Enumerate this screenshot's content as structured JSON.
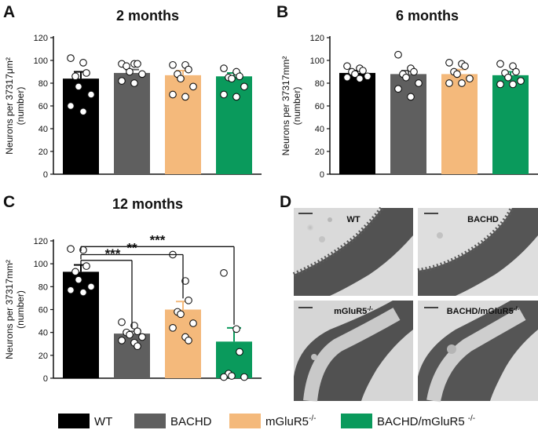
{
  "panels": {
    "A": "A",
    "B": "B",
    "C": "C",
    "D": "D"
  },
  "colors": {
    "WT": "#000000",
    "BACHD": "#5f5f5f",
    "mGluR5": "#f4b97b",
    "BACHD_mGluR5": "#0a9a5c"
  },
  "chart_data": [
    {
      "panel": "A",
      "type": "bar",
      "title": "2 months",
      "ylabel_line1": "Neurons per 37317μm²",
      "ylabel_line2": "(number)",
      "ylim": [
        0,
        120
      ],
      "yticks": [
        0,
        20,
        40,
        60,
        80,
        100,
        120
      ],
      "categories": [
        "WT",
        "BACHD",
        "mGluR5-/-",
        "BACHD/mGluR5-/-"
      ],
      "values": [
        84,
        89,
        87,
        86
      ],
      "sem": [
        6,
        3,
        4,
        3
      ],
      "points": [
        [
          102,
          98,
          89,
          86,
          77,
          70,
          60,
          55
        ],
        [
          97,
          97,
          97,
          95,
          90,
          88,
          82,
          80
        ],
        [
          96,
          96,
          92,
          88,
          84,
          77,
          70,
          68
        ],
        [
          93,
          90,
          86,
          85,
          84,
          77,
          70,
          68
        ]
      ],
      "significance": []
    },
    {
      "panel": "B",
      "type": "bar",
      "title": "6 months",
      "ylabel_line1": "Neurons per 37317mm²",
      "ylabel_line2": "(number)",
      "ylim": [
        0,
        120
      ],
      "yticks": [
        0,
        20,
        40,
        60,
        80,
        100,
        120
      ],
      "categories": [
        "WT",
        "BACHD",
        "mGluR5-/-",
        "BACHD/mGluR5-/-"
      ],
      "values": [
        89,
        88,
        88,
        87
      ],
      "sem": [
        2,
        3,
        4,
        3
      ],
      "points": [
        [
          95,
          93,
          91,
          90,
          88,
          86,
          85,
          84
        ],
        [
          105,
          93,
          90,
          88,
          85,
          80,
          75,
          68
        ],
        [
          98,
          97,
          95,
          90,
          88,
          84,
          80,
          80
        ],
        [
          97,
          95,
          90,
          89,
          85,
          82,
          79,
          79
        ]
      ],
      "significance": []
    },
    {
      "panel": "C",
      "type": "bar",
      "title": "12 months",
      "ylabel_line1": "Neurons per 37317mm²",
      "ylabel_line2": "(number)",
      "ylim": [
        0,
        120
      ],
      "yticks": [
        0,
        20,
        40,
        60,
        80,
        100,
        120
      ],
      "categories": [
        "WT",
        "BACHD",
        "mGluR5-/-",
        "BACHD/mGluR5-/-"
      ],
      "values": [
        93,
        39,
        60,
        32
      ],
      "sem": [
        6,
        2,
        7,
        12
      ],
      "points": [
        [
          113,
          112,
          98,
          93,
          86,
          80,
          77,
          75
        ],
        [
          49,
          46,
          41,
          40,
          38,
          36,
          33,
          31,
          28
        ],
        [
          108,
          85,
          68,
          58,
          56,
          48,
          44,
          36,
          33
        ],
        [
          92,
          43,
          23,
          4,
          2,
          1,
          1
        ]
      ],
      "significance": [
        {
          "from": 0,
          "to": 1,
          "label": "***",
          "y": 103
        },
        {
          "from": 0,
          "to": 2,
          "label": "**",
          "y": 108
        },
        {
          "from": 0,
          "to": 3,
          "label": "***",
          "y": 115
        }
      ]
    }
  ],
  "images": {
    "wt": "WT",
    "bachd": "BACHD",
    "mglur5": "mGluR5",
    "double": "BACHD/mGluR5",
    "superscript": "-/-"
  },
  "legend": [
    {
      "label": "WT",
      "sup": ""
    },
    {
      "label": "BACHD",
      "sup": ""
    },
    {
      "label": "mGluR5",
      "sup": "-/-"
    },
    {
      "label": "BACHD/mGluR5",
      "sup": "-/-"
    }
  ]
}
